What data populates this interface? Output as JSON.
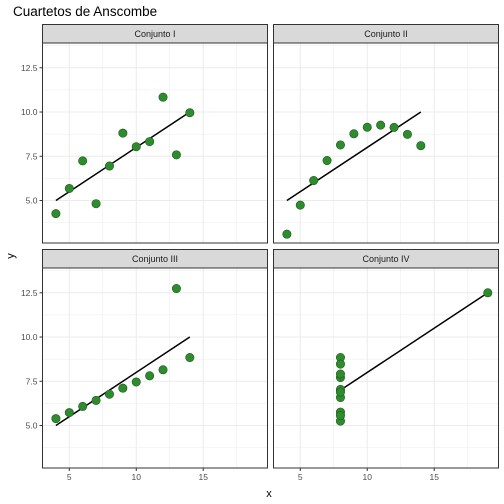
{
  "chart_data": {
    "type": "scatter",
    "title": "Cuartetos de Anscombe",
    "xlabel": "x",
    "ylabel": "y",
    "xlim": [
      3,
      19.8
    ],
    "ylim": [
      2.6,
      13.9
    ],
    "x_ticks": [
      5,
      10,
      15
    ],
    "y_ticks": [
      5.0,
      7.5,
      10.0,
      12.5
    ],
    "x_tick_labels": [
      "5",
      "10",
      "15"
    ],
    "y_tick_labels": [
      "5.0",
      "7.5",
      "10.0",
      "12.5"
    ],
    "grid": true,
    "facets": [
      "Conjunto I",
      "Conjunto II",
      "Conjunto III",
      "Conjunto IV"
    ],
    "colors": {
      "point": "#2e8b2e",
      "point_edge": "#1c5c1c",
      "line": "#000000",
      "strip_bg": "#d9d9d9",
      "grid": "#ebebeb",
      "panel_border": "#333333"
    },
    "series": [
      {
        "name": "Conjunto I",
        "x": [
          10,
          8,
          13,
          9,
          11,
          14,
          6,
          4,
          12,
          7,
          5
        ],
        "y": [
          8.04,
          6.95,
          7.58,
          8.81,
          8.33,
          9.96,
          7.24,
          4.26,
          10.84,
          4.82,
          5.68
        ],
        "fit": {
          "x": [
            4,
            14
          ],
          "y": [
            5.0,
            10.0
          ]
        }
      },
      {
        "name": "Conjunto II",
        "x": [
          10,
          8,
          13,
          9,
          11,
          14,
          6,
          4,
          12,
          7,
          5
        ],
        "y": [
          9.14,
          8.14,
          8.74,
          8.77,
          9.26,
          8.1,
          6.13,
          3.1,
          9.13,
          7.26,
          4.74
        ],
        "fit": {
          "x": [
            4,
            14
          ],
          "y": [
            5.0,
            10.0
          ]
        }
      },
      {
        "name": "Conjunto III",
        "x": [
          10,
          8,
          13,
          9,
          11,
          14,
          6,
          4,
          12,
          7,
          5
        ],
        "y": [
          7.46,
          6.77,
          12.74,
          7.11,
          7.81,
          8.84,
          6.08,
          5.39,
          8.15,
          6.42,
          5.73
        ],
        "fit": {
          "x": [
            4,
            14
          ],
          "y": [
            5.0,
            10.0
          ]
        }
      },
      {
        "name": "Conjunto IV",
        "x": [
          8,
          8,
          8,
          8,
          8,
          8,
          8,
          19,
          8,
          8,
          8
        ],
        "y": [
          6.58,
          5.76,
          7.71,
          8.84,
          8.47,
          7.04,
          5.25,
          12.5,
          5.56,
          7.91,
          6.89
        ],
        "fit": {
          "x": [
            8,
            19
          ],
          "y": [
            7.0,
            12.5
          ]
        }
      }
    ]
  }
}
